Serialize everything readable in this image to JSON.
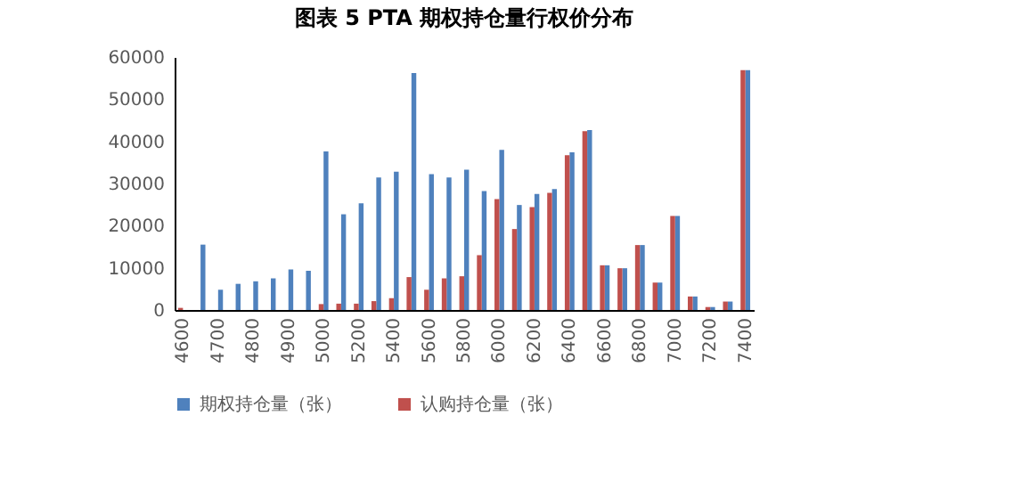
{
  "chart_data": {
    "type": "bar",
    "title": "图表 5    PTA 期权持仓量行权价分布",
    "categories": [
      "4600",
      null,
      "4700",
      null,
      "4800",
      null,
      "4900",
      null,
      "5000",
      null,
      "5200",
      null,
      "5400",
      null,
      "5600",
      null,
      "5800",
      null,
      "6000",
      null,
      "6200",
      null,
      "6400",
      null,
      "6600",
      null,
      "6800",
      null,
      "7000",
      null,
      "7200",
      null,
      "7400"
    ],
    "series": [
      {
        "name": "期权持仓量（张）",
        "color": "#4f81bd",
        "values": [
          0,
          15500,
          4800,
          6200,
          6800,
          7500,
          9600,
          9300,
          37600,
          22700,
          25300,
          31400,
          32800,
          56200,
          32200,
          31400,
          33300,
          28200,
          38000,
          24900,
          27500,
          28700,
          37400,
          42700,
          10600,
          9900,
          15400,
          6500,
          22300,
          3200,
          700,
          2000,
          56900
        ]
      },
      {
        "name": "认购持仓量（张）",
        "color": "#c0504d",
        "values": [
          500,
          0,
          0,
          0,
          0,
          0,
          0,
          0,
          1400,
          1500,
          1500,
          2100,
          2800,
          7800,
          4800,
          7500,
          8000,
          13000,
          26300,
          19200,
          24400,
          27800,
          36700,
          42400,
          10600,
          9900,
          15400,
          6500,
          22300,
          3200,
          700,
          2000,
          56900
        ]
      }
    ],
    "ylim": [
      0,
      60000
    ],
    "yticks": [
      0,
      10000,
      20000,
      30000,
      40000,
      50000,
      60000
    ],
    "grid": false,
    "legend": "bottom"
  }
}
